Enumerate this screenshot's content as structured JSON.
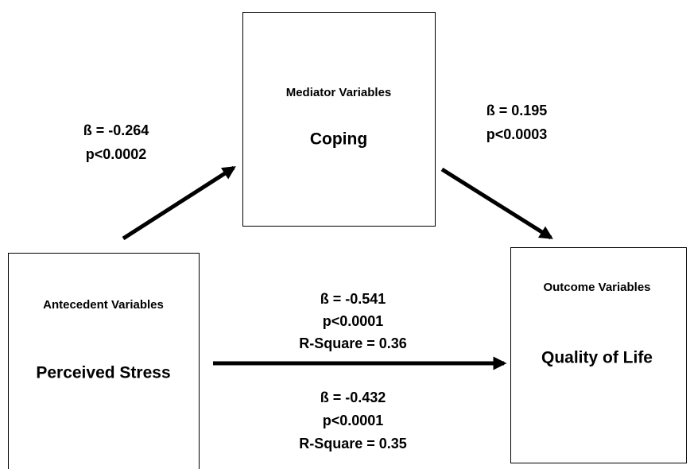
{
  "nodes": [
    {
      "role": "Mediator Variables",
      "label": "Coping"
    },
    {
      "role": "Antecedent Variables",
      "label": "Perceived Stress"
    },
    {
      "role": "Outcome Variables",
      "label": "Quality of Life"
    }
  ],
  "edges": [
    {
      "lines": [
        "ß = -0.264",
        "p<0.0002"
      ]
    },
    {
      "lines": [
        "ß = 0.195",
        "p<0.0003"
      ]
    },
    {
      "lines": [
        "ß = -0.541",
        "p<0.0001",
        "R-Square = 0.36"
      ]
    },
    {
      "lines": [
        "ß = -0.432",
        "p<0.0001",
        "R-Square = 0.35"
      ]
    }
  ]
}
